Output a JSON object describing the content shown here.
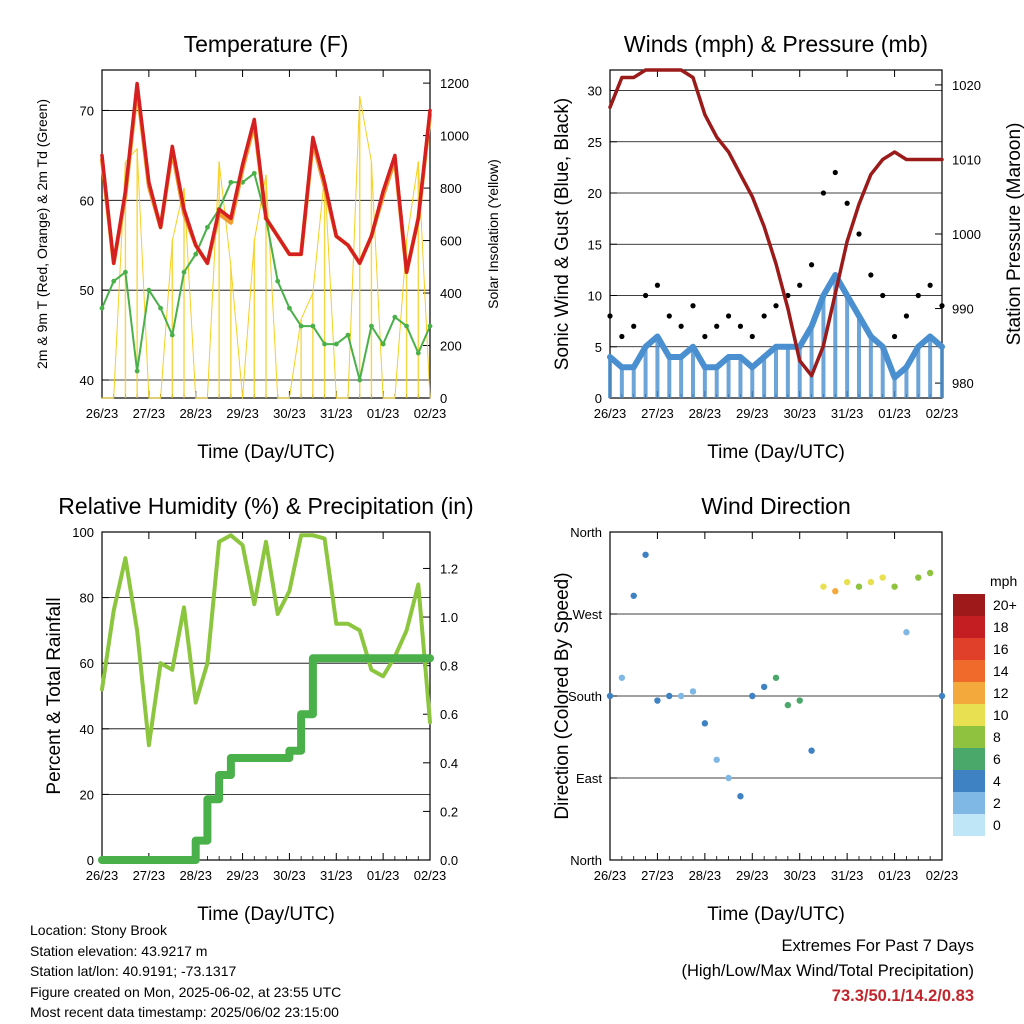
{
  "chart_data": [
    {
      "type": "line",
      "title": "Temperature (F)",
      "xlabel": "Time (Day/UTC)",
      "ylabel": "2m & 9m T (Red, Orange) & 2m Td (Green)",
      "ylabel_right": "Solar Insolation (Yellow)",
      "x_ticks": [
        "26/23",
        "27/23",
        "28/23",
        "29/23",
        "30/23",
        "31/23",
        "01/23",
        "02/23"
      ],
      "ylim": [
        38,
        74.5
      ],
      "y_ticks": [
        40,
        50,
        60,
        70
      ],
      "y2lim": [
        0,
        1250
      ],
      "y2_ticks": [
        0,
        200,
        400,
        600,
        800,
        1000,
        1200
      ],
      "grid": true,
      "x": [
        0,
        0.25,
        0.5,
        0.75,
        1,
        1.25,
        1.5,
        1.75,
        2,
        2.25,
        2.5,
        2.75,
        3,
        3.25,
        3.5,
        3.75,
        4,
        4.25,
        4.5,
        4.75,
        5,
        5.25,
        5.5,
        5.75,
        6,
        6.25,
        6.5,
        6.75,
        7
      ],
      "series": [
        {
          "name": "2m T",
          "color": "#d42020",
          "values": [
            65,
            53,
            61,
            73,
            62,
            57,
            66,
            59,
            55,
            53,
            59,
            58,
            64,
            69,
            58,
            56,
            54,
            54,
            67,
            62,
            56,
            55,
            53,
            56,
            61,
            65,
            52,
            58,
            70
          ]
        },
        {
          "name": "9m T",
          "color": "#f29b30",
          "values": [
            64.5,
            53,
            60.5,
            72.5,
            61.5,
            57,
            65.5,
            58.5,
            55,
            53,
            58.5,
            57.5,
            63.5,
            68.5,
            58,
            56,
            54,
            54,
            66.5,
            61.5,
            56,
            55,
            53,
            56,
            60.5,
            64.5,
            52,
            58,
            69.5
          ]
        },
        {
          "name": "2m Td",
          "color": "#4ab04a",
          "values": [
            48,
            51,
            52,
            41,
            50,
            48,
            45,
            52,
            54,
            57,
            59,
            62,
            62,
            63,
            58,
            51,
            48,
            46,
            46,
            44,
            44,
            45,
            40,
            46,
            44,
            47,
            46,
            43,
            46
          ]
        }
      ],
      "series_right": [
        {
          "name": "Solar Insolation",
          "color": "#f5d020",
          "values": [
            0,
            0,
            900,
            950,
            0,
            0,
            600,
            800,
            0,
            0,
            900,
            500,
            0,
            600,
            850,
            0,
            0,
            300,
            400,
            850,
            0,
            0,
            1150,
            900,
            0,
            0,
            600,
            900,
            0
          ]
        }
      ]
    },
    {
      "type": "scatter",
      "title": "Winds (mph) & Pressure (mb)",
      "xlabel": "Time (Day/UTC)",
      "ylabel": "Sonic Wind & Gust (Blue, Black)",
      "ylabel_right": "Station Pressure (Maroon)",
      "x_ticks": [
        "26/23",
        "27/23",
        "28/23",
        "29/23",
        "30/23",
        "31/23",
        "01/23",
        "02/23"
      ],
      "ylim": [
        0,
        32
      ],
      "y_ticks": [
        0,
        5,
        10,
        15,
        20,
        25,
        30
      ],
      "y2lim": [
        978,
        1022
      ],
      "y2_ticks": [
        980,
        990,
        1000,
        1010,
        1020
      ],
      "grid": true,
      "x": [
        0,
        0.25,
        0.5,
        0.75,
        1,
        1.25,
        1.5,
        1.75,
        2,
        2.25,
        2.5,
        2.75,
        3,
        3.25,
        3.5,
        3.75,
        4,
        4.25,
        4.5,
        4.75,
        5,
        5.25,
        5.5,
        5.75,
        6,
        6.25,
        6.5,
        6.75,
        7
      ],
      "series": [
        {
          "name": "Gust",
          "color": "#000000",
          "values": [
            8,
            6,
            7,
            10,
            11,
            8,
            7,
            9,
            6,
            7,
            8,
            7,
            6,
            8,
            9,
            10,
            11,
            13,
            20,
            22,
            19,
            16,
            12,
            10,
            6,
            8,
            10,
            11,
            9
          ]
        },
        {
          "name": "Sonic Wind",
          "color": "#4a8fd0",
          "values": [
            4,
            3,
            3,
            5,
            6,
            4,
            4,
            5,
            3,
            3,
            4,
            4,
            3,
            4,
            5,
            5,
            5,
            7,
            10,
            12,
            10,
            8,
            6,
            5,
            2,
            3,
            5,
            6,
            5
          ]
        }
      ],
      "series_right": [
        {
          "name": "Station Pressure",
          "color": "#9b1b1b",
          "values": [
            1017,
            1021,
            1021,
            1022,
            1022,
            1022,
            1022,
            1021,
            1016,
            1013,
            1011,
            1008,
            1005,
            1001,
            996,
            990,
            983,
            981,
            985,
            992,
            999,
            1004,
            1008,
            1010,
            1011,
            1010,
            1010,
            1010,
            1010
          ]
        }
      ]
    },
    {
      "type": "line",
      "title": "Relative Humidity (%) & Precipitation (in)",
      "xlabel": "Time (Day/UTC)",
      "ylabel": "Percent & Total Rainfall",
      "x_ticks": [
        "26/23",
        "27/23",
        "28/23",
        "29/23",
        "30/23",
        "31/23",
        "01/23",
        "02/23"
      ],
      "ylim": [
        0,
        100
      ],
      "y_ticks": [
        0,
        20,
        40,
        60,
        80,
        100
      ],
      "y2lim": [
        0,
        1.35
      ],
      "y2_ticks": [
        "0.0",
        "0.2",
        "0.4",
        "0.6",
        "0.8",
        "1.0",
        "1.2"
      ],
      "grid": true,
      "x": [
        0,
        0.25,
        0.5,
        0.75,
        1,
        1.25,
        1.5,
        1.75,
        2,
        2.25,
        2.5,
        2.75,
        3,
        3.25,
        3.5,
        3.75,
        4,
        4.25,
        4.5,
        4.75,
        5,
        5.25,
        5.5,
        5.75,
        6,
        6.25,
        6.5,
        6.75,
        7
      ],
      "series": [
        {
          "name": "Relative Humidity",
          "color": "#8cc63f",
          "values": [
            52,
            76,
            92,
            70,
            35,
            60,
            58,
            77,
            48,
            60,
            97,
            99,
            96,
            78,
            97,
            75,
            82,
            99,
            99,
            98,
            72,
            72,
            70,
            58,
            56,
            62,
            70,
            84,
            42
          ]
        }
      ],
      "series_right": [
        {
          "name": "Total Precipitation",
          "color": "#4ab04a",
          "values": [
            0,
            0,
            0,
            0,
            0,
            0,
            0,
            0,
            0.08,
            0.25,
            0.35,
            0.42,
            0.42,
            0.42,
            0.42,
            0.42,
            0.45,
            0.6,
            0.83,
            0.83,
            0.83,
            0.83,
            0.83,
            0.83,
            0.83,
            0.83,
            0.83,
            0.83,
            0.83
          ]
        }
      ]
    },
    {
      "type": "scatter",
      "title": "Wind Direction",
      "xlabel": "Time (Day/UTC)",
      "ylabel": "Direction (Colored By Speed)",
      "x_ticks": [
        "26/23",
        "27/23",
        "28/23",
        "29/23",
        "30/23",
        "31/23",
        "01/23",
        "02/23"
      ],
      "ylim": [
        0,
        360
      ],
      "y_ticks": [
        0,
        90,
        180,
        270,
        360
      ],
      "y_tick_labels": [
        "North",
        "East",
        "South",
        "West",
        "North"
      ],
      "grid": true,
      "colorbar": {
        "title": "mph",
        "levels": [
          "0",
          "2",
          "4",
          "6",
          "8",
          "10",
          "12",
          "14",
          "16",
          "18",
          "20+"
        ],
        "colors": [
          "#bfe6f7",
          "#7fb8e4",
          "#3f82c3",
          "#4aa86a",
          "#8ec23f",
          "#e8e050",
          "#f4a93c",
          "#ef6a2b",
          "#e0402a",
          "#c41e22",
          "#9e1a1a"
        ]
      },
      "x": [
        0,
        0.25,
        0.5,
        0.75,
        1,
        1.25,
        1.5,
        1.75,
        2,
        2.25,
        2.5,
        2.75,
        3,
        3.25,
        3.5,
        3.75,
        4,
        4.25,
        4.5,
        4.75,
        5,
        5.25,
        5.5,
        5.75,
        6,
        6.25,
        6.5,
        6.75,
        7
      ],
      "series": [
        {
          "name": "Direction",
          "values": [
            180,
            200,
            290,
            335,
            175,
            180,
            180,
            185,
            150,
            110,
            90,
            70,
            180,
            190,
            200,
            170,
            175,
            120,
            300,
            295,
            305,
            300,
            305,
            310,
            300,
            250,
            310,
            315,
            180
          ],
          "speeds": [
            3,
            2,
            3,
            4,
            4,
            3,
            2,
            2,
            3,
            2,
            2,
            4,
            3,
            4,
            5,
            6,
            6,
            4,
            9,
            12,
            10,
            8,
            9,
            9,
            7,
            1,
            7,
            8,
            4
          ]
        }
      ]
    }
  ],
  "footer": {
    "location": "Location: Stony Brook",
    "elevation": "Station elevation: 43.9217 m",
    "latlon": "Station lat/lon: 40.9191; -73.1317",
    "created": "Figure created on Mon, 2025-06-02, at 23:55 UTC",
    "recent": "Most recent data timestamp: 2025/06/02 23:15:00"
  },
  "extremes": {
    "title": "Extremes For Past 7 Days",
    "subtitle": "(High/Low/Max Wind/Total Precipitation)",
    "values": "73.3/50.1/14.2/0.83"
  }
}
